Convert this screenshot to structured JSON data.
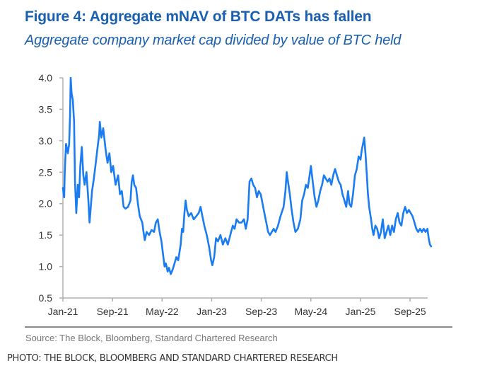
{
  "title": "Figure 4: Aggregate mNAV of BTC DATs has fallen",
  "subtitle": "Aggregate company market cap divided by value of BTC held",
  "source": "Source: The Block, Bloomberg, Standard Chartered Research",
  "photo_credit": "PHOTO: THE BLOCK, BLOOMBERG AND STANDARD CHARTERED RESEARCH",
  "colors": {
    "title": "#1a5fb0",
    "line": "#1a7cf0",
    "axis": "#b0b0b0"
  },
  "chart_data": {
    "type": "line",
    "title": "Figure 4: Aggregate mNAV of BTC DATs has fallen",
    "subtitle": "Aggregate company market cap divided by value of BTC held",
    "xlabel": "",
    "ylabel": "",
    "ylim": [
      0.5,
      4.0
    ],
    "yticks": [
      "0.5",
      "1.0",
      "1.5",
      "2.0",
      "2.5",
      "3.0",
      "3.5",
      "4.0"
    ],
    "ytick_values": [
      0.5,
      1.0,
      1.5,
      2.0,
      2.5,
      3.0,
      3.5,
      4.0
    ],
    "xlim_months_since_jan21": [
      0,
      59.5
    ],
    "xticks": [
      "Jan-21",
      "Sep-21",
      "May-22",
      "Jan-23",
      "Sep-23",
      "May-24",
      "Jan-25",
      "Sep-25"
    ],
    "xtick_months": [
      0,
      8,
      16,
      24,
      32,
      40,
      48,
      56
    ],
    "grid": false,
    "legend": "none",
    "series": [
      {
        "name": "Aggregate mNAV",
        "x_unit": "months since Jan-21",
        "points": [
          [
            0.0,
            2.25
          ],
          [
            0.2,
            2.1
          ],
          [
            0.3,
            2.5
          ],
          [
            0.5,
            2.95
          ],
          [
            0.8,
            2.8
          ],
          [
            1.0,
            2.95
          ],
          [
            1.15,
            3.4
          ],
          [
            1.25,
            4.0
          ],
          [
            1.4,
            3.75
          ],
          [
            1.6,
            3.65
          ],
          [
            1.8,
            3.3
          ],
          [
            1.95,
            2.35
          ],
          [
            2.15,
            1.85
          ],
          [
            2.4,
            2.3
          ],
          [
            2.6,
            2.1
          ],
          [
            2.8,
            2.6
          ],
          [
            3.05,
            2.9
          ],
          [
            3.3,
            2.45
          ],
          [
            3.5,
            2.3
          ],
          [
            3.8,
            2.5
          ],
          [
            4.1,
            2.05
          ],
          [
            4.3,
            1.7
          ],
          [
            4.7,
            2.2
          ],
          [
            5.0,
            2.4
          ],
          [
            5.3,
            2.65
          ],
          [
            5.6,
            2.9
          ],
          [
            5.85,
            3.1
          ],
          [
            5.95,
            3.3
          ],
          [
            6.2,
            3.05
          ],
          [
            6.5,
            3.2
          ],
          [
            6.9,
            2.85
          ],
          [
            7.2,
            2.65
          ],
          [
            7.5,
            2.8
          ],
          [
            7.8,
            2.5
          ],
          [
            8.1,
            2.6
          ],
          [
            8.5,
            2.3
          ],
          [
            8.9,
            2.45
          ],
          [
            9.2,
            2.15
          ],
          [
            9.5,
            2.2
          ],
          [
            9.8,
            1.95
          ],
          [
            10.1,
            1.92
          ],
          [
            10.5,
            1.95
          ],
          [
            10.9,
            2.05
          ],
          [
            11.1,
            2.35
          ],
          [
            11.3,
            2.45
          ],
          [
            11.5,
            2.3
          ],
          [
            11.8,
            2.25
          ],
          [
            12.1,
            2.0
          ],
          [
            12.4,
            1.8
          ],
          [
            12.8,
            1.7
          ],
          [
            13.0,
            1.55
          ],
          [
            13.2,
            1.42
          ],
          [
            13.5,
            1.55
          ],
          [
            13.9,
            1.5
          ],
          [
            14.3,
            1.58
          ],
          [
            14.7,
            1.55
          ],
          [
            15.0,
            1.7
          ],
          [
            15.3,
            1.75
          ],
          [
            15.6,
            1.55
          ],
          [
            15.9,
            1.4
          ],
          [
            16.2,
            1.15
          ],
          [
            16.4,
            1.0
          ],
          [
            16.6,
            1.05
          ],
          [
            16.9,
            0.92
          ],
          [
            17.1,
            0.98
          ],
          [
            17.4,
            0.88
          ],
          [
            17.7,
            0.95
          ],
          [
            18.0,
            1.05
          ],
          [
            18.3,
            1.15
          ],
          [
            18.6,
            1.1
          ],
          [
            19.0,
            1.35
          ],
          [
            19.2,
            1.6
          ],
          [
            19.4,
            1.55
          ],
          [
            19.6,
            1.85
          ],
          [
            19.8,
            2.05
          ],
          [
            20.0,
            1.9
          ],
          [
            20.3,
            1.8
          ],
          [
            20.7,
            1.85
          ],
          [
            21.1,
            1.75
          ],
          [
            21.5,
            1.8
          ],
          [
            21.9,
            1.85
          ],
          [
            22.2,
            1.95
          ],
          [
            22.5,
            1.8
          ],
          [
            22.8,
            1.65
          ],
          [
            23.2,
            1.5
          ],
          [
            23.6,
            1.3
          ],
          [
            23.9,
            1.1
          ],
          [
            24.1,
            1.02
          ],
          [
            24.4,
            1.15
          ],
          [
            24.7,
            1.45
          ],
          [
            25.0,
            1.4
          ],
          [
            25.4,
            1.5
          ],
          [
            25.8,
            1.35
          ],
          [
            26.2,
            1.45
          ],
          [
            26.6,
            1.35
          ],
          [
            27.0,
            1.5
          ],
          [
            27.4,
            1.65
          ],
          [
            27.7,
            1.6
          ],
          [
            28.0,
            1.75
          ],
          [
            28.4,
            1.7
          ],
          [
            28.8,
            1.7
          ],
          [
            29.2,
            1.75
          ],
          [
            29.5,
            1.6
          ],
          [
            29.8,
            1.75
          ],
          [
            30.1,
            2.35
          ],
          [
            30.4,
            2.4
          ],
          [
            30.7,
            2.3
          ],
          [
            31.0,
            2.25
          ],
          [
            31.3,
            2.1
          ],
          [
            31.6,
            2.2
          ],
          [
            31.9,
            2.15
          ],
          [
            32.2,
            2.0
          ],
          [
            32.5,
            1.85
          ],
          [
            32.8,
            1.7
          ],
          [
            33.1,
            1.55
          ],
          [
            33.4,
            1.5
          ],
          [
            33.7,
            1.55
          ],
          [
            34.0,
            1.6
          ],
          [
            34.3,
            1.55
          ],
          [
            34.7,
            1.65
          ],
          [
            35.1,
            1.8
          ],
          [
            35.6,
            1.95
          ],
          [
            35.9,
            2.2
          ],
          [
            36.1,
            2.5
          ],
          [
            36.3,
            2.35
          ],
          [
            36.6,
            2.15
          ],
          [
            36.9,
            1.9
          ],
          [
            37.2,
            1.7
          ],
          [
            37.5,
            1.55
          ],
          [
            37.9,
            1.6
          ],
          [
            38.3,
            1.75
          ],
          [
            38.6,
            2.05
          ],
          [
            38.9,
            2.15
          ],
          [
            39.2,
            2.3
          ],
          [
            39.5,
            2.25
          ],
          [
            39.8,
            2.45
          ],
          [
            40.0,
            2.6
          ],
          [
            40.3,
            2.35
          ],
          [
            40.6,
            2.1
          ],
          [
            40.9,
            1.95
          ],
          [
            41.2,
            2.05
          ],
          [
            41.5,
            2.2
          ],
          [
            41.8,
            2.3
          ],
          [
            42.1,
            2.45
          ],
          [
            42.4,
            2.4
          ],
          [
            42.7,
            2.35
          ],
          [
            43.0,
            2.4
          ],
          [
            43.3,
            2.3
          ],
          [
            43.6,
            2.45
          ],
          [
            43.9,
            2.55
          ],
          [
            44.2,
            2.45
          ],
          [
            44.5,
            2.35
          ],
          [
            44.8,
            2.3
          ],
          [
            45.1,
            2.15
          ],
          [
            45.4,
            2.05
          ],
          [
            45.7,
            1.95
          ],
          [
            46.0,
            2.2
          ],
          [
            46.2,
            2.0
          ],
          [
            46.5,
            1.95
          ],
          [
            46.8,
            2.15
          ],
          [
            47.1,
            2.45
          ],
          [
            47.4,
            2.55
          ],
          [
            47.7,
            2.75
          ],
          [
            48.0,
            2.7
          ],
          [
            48.2,
            2.85
          ],
          [
            48.4,
            2.95
          ],
          [
            48.6,
            3.05
          ],
          [
            48.8,
            2.8
          ],
          [
            49.0,
            2.5
          ],
          [
            49.2,
            2.15
          ],
          [
            49.4,
            1.95
          ],
          [
            49.7,
            1.75
          ],
          [
            49.9,
            1.6
          ],
          [
            50.1,
            1.5
          ],
          [
            50.4,
            1.65
          ],
          [
            50.7,
            1.6
          ],
          [
            51.0,
            1.45
          ],
          [
            51.3,
            1.55
          ],
          [
            51.6,
            1.75
          ],
          [
            51.9,
            1.45
          ],
          [
            52.2,
            1.55
          ],
          [
            52.5,
            1.65
          ],
          [
            52.8,
            1.5
          ],
          [
            53.1,
            1.65
          ],
          [
            53.4,
            1.55
          ],
          [
            53.7,
            1.75
          ],
          [
            54.0,
            1.85
          ],
          [
            54.3,
            1.7
          ],
          [
            54.6,
            1.65
          ],
          [
            54.9,
            1.85
          ],
          [
            55.2,
            1.95
          ],
          [
            55.5,
            1.85
          ],
          [
            55.8,
            1.9
          ],
          [
            56.1,
            1.85
          ],
          [
            56.4,
            1.8
          ],
          [
            56.7,
            1.7
          ],
          [
            57.0,
            1.6
          ],
          [
            57.3,
            1.55
          ],
          [
            57.6,
            1.6
          ],
          [
            57.9,
            1.55
          ],
          [
            58.2,
            1.6
          ],
          [
            58.5,
            1.55
          ],
          [
            58.8,
            1.6
          ],
          [
            59.0,
            1.45
          ],
          [
            59.2,
            1.35
          ],
          [
            59.4,
            1.32
          ]
        ]
      }
    ]
  }
}
